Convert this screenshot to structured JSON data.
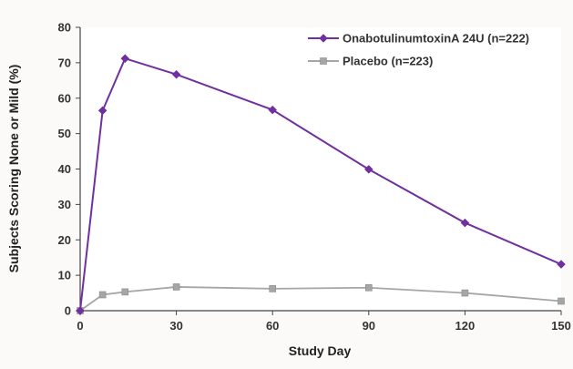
{
  "chart_data": {
    "type": "line",
    "xlabel": "Study Day",
    "ylabel": "Subjects Scoring None or Mild (%)",
    "xlim": [
      0,
      150
    ],
    "ylim": [
      0,
      80
    ],
    "xticks": [
      0,
      30,
      60,
      90,
      120,
      150
    ],
    "yticks": [
      0,
      10,
      20,
      30,
      40,
      50,
      60,
      70,
      80
    ],
    "grid": false,
    "legend_position": "top-right",
    "series": [
      {
        "name": "OnabotulinumtoxinA 24U (n=222)",
        "color": "#7030a0",
        "marker": "diamond",
        "x": [
          0,
          7,
          14,
          30,
          60,
          90,
          120,
          150
        ],
        "y": [
          0,
          56.5,
          71.2,
          66.7,
          56.7,
          39.9,
          24.8,
          13.1
        ]
      },
      {
        "name": "Placebo (n=223)",
        "color": "#a6a6a6",
        "marker": "square",
        "x": [
          0,
          7,
          14,
          30,
          60,
          90,
          120,
          150
        ],
        "y": [
          0,
          4.5,
          5.3,
          6.7,
          6.2,
          6.5,
          5.0,
          2.7
        ]
      }
    ]
  }
}
